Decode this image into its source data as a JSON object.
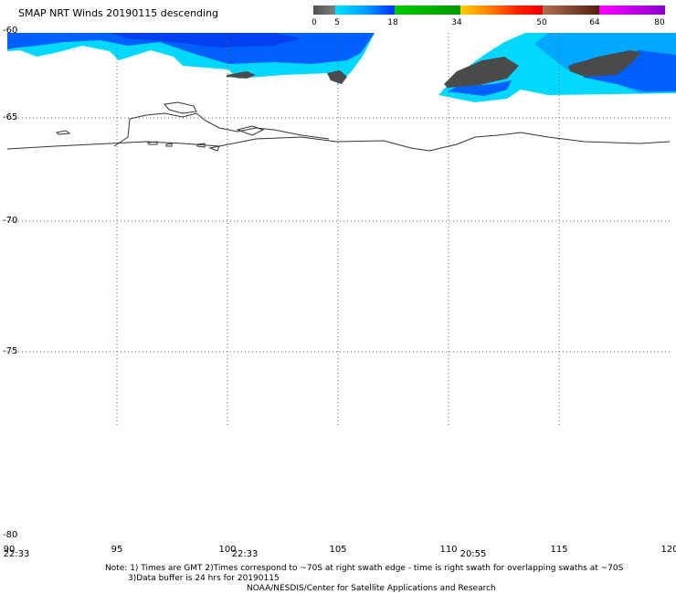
{
  "title": "SMAP NRT Winds  20190115 descending",
  "colorbar": {
    "segments": [
      {
        "from": 0,
        "to": 5,
        "color": "#505050"
      },
      {
        "from": 5,
        "to": 18,
        "color": "#0077ff"
      },
      {
        "from": 18,
        "to": 34,
        "color": "#00aa00"
      },
      {
        "from": 34,
        "to": 50,
        "color": "#ff2200"
      },
      {
        "from": 50,
        "to": 64,
        "color": "#704020"
      },
      {
        "from": 64,
        "to": 80,
        "color": "#cc00cc"
      }
    ],
    "tick_labels": [
      "0",
      "5",
      "18",
      "34",
      "50",
      "64",
      "80"
    ]
  },
  "map": {
    "lat_labels": [
      "-60",
      "-65",
      "-70",
      "-75",
      "-80"
    ],
    "lon_labels": [
      "90",
      "95",
      "100",
      "105",
      "110",
      "115",
      "120"
    ],
    "time_labels": [
      "22:33",
      "22:33",
      "20:55"
    ],
    "colors": {
      "land_wind_free": "#ffffff",
      "low_wind": "#00d8ff",
      "moderate_wind": "#0050ff",
      "calm": "#4a4a4a",
      "coastline": "#333333",
      "grid": "#606060"
    }
  },
  "notes": {
    "line1": "Note: 1) Times are GMT 2)Times correspond to ~70S at right swath edge - time is right swath for overlapping swaths at ~70S",
    "line2": "3)Data buffer is 24 hrs for 20190115",
    "line3": "NOAA/NESDIS/Center for Satellite Applications and Research"
  }
}
